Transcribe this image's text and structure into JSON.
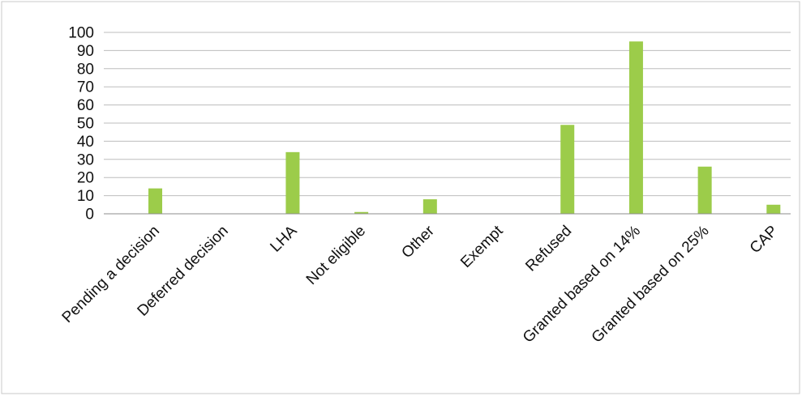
{
  "chart_data": {
    "type": "bar",
    "title": "",
    "xlabel": "",
    "ylabel": "",
    "ylim": [
      0,
      100
    ],
    "yticks": [
      0,
      10,
      20,
      30,
      40,
      50,
      60,
      70,
      80,
      90,
      100
    ],
    "grid": true,
    "legend": "none",
    "bar_color": "#9ccc4a",
    "categories": [
      "Pending a decision",
      "Deferred decision",
      "LHA",
      "Not eligible",
      "Other",
      "Exempt",
      "Refused",
      "Granted based on 14%",
      "Granted based on 25%",
      "CAP"
    ],
    "values": [
      14,
      0,
      34,
      1,
      8,
      0,
      49,
      95,
      26,
      5
    ]
  }
}
